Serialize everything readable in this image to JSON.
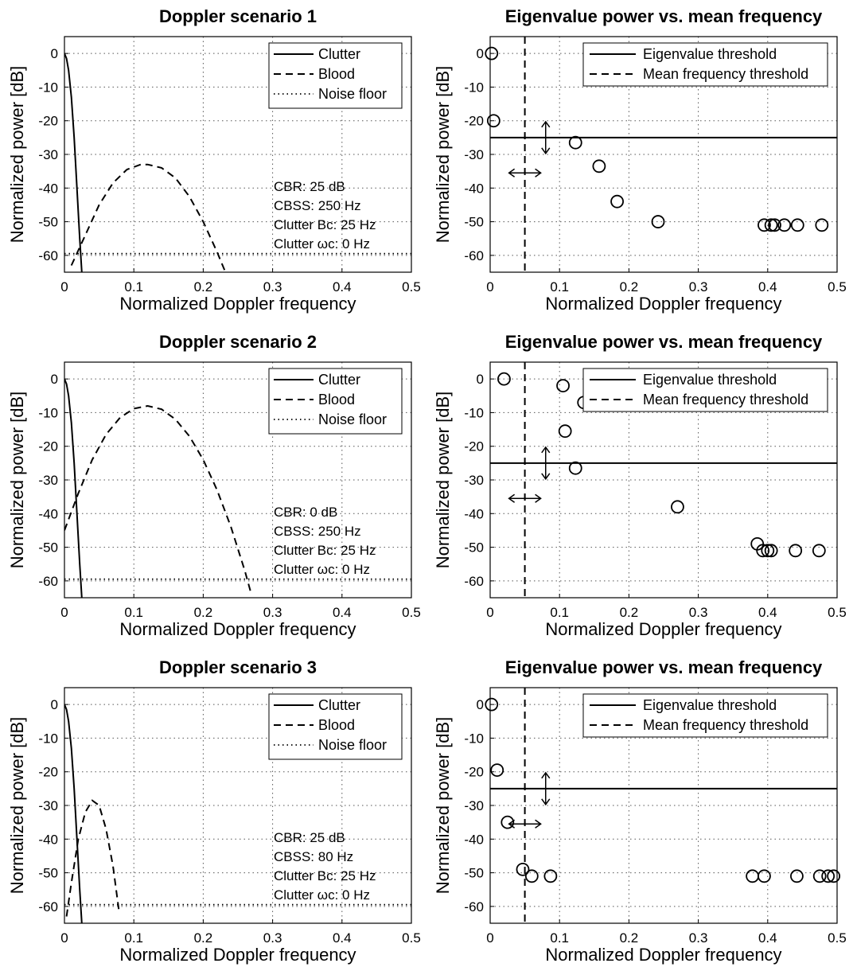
{
  "chart_data": [
    {
      "type": "line",
      "title": "Doppler scenario 1",
      "xlabel": "Normalized Doppler frequency",
      "ylabel": "Normalized power [dB]",
      "xlim": [
        0,
        0.5
      ],
      "ylim": [
        -65,
        5
      ],
      "xticks": [
        "0",
        "0.1",
        "0.2",
        "0.3",
        "0.4",
        "0.5"
      ],
      "yticks": [
        "0",
        "-10",
        "-20",
        "-30",
        "-40",
        "-50",
        "-60"
      ],
      "grid": true,
      "legend": {
        "position": "top-right",
        "entries": [
          "Clutter",
          "Blood",
          "Noise floor"
        ]
      },
      "annotations": [
        "CBR: 25 dB",
        "CBSS:  250 Hz",
        "Clutter Bc: 25 Hz",
        "Clutter ωc: 0 Hz"
      ],
      "series": [
        {
          "name": "Clutter",
          "style": "solid",
          "points": [
            [
              0,
              0
            ],
            [
              0.003,
              -1.5
            ],
            [
              0.006,
              -5
            ],
            [
              0.01,
              -13
            ],
            [
              0.014,
              -25
            ],
            [
              0.018,
              -40
            ],
            [
              0.022,
              -55
            ],
            [
              0.025,
              -65
            ]
          ]
        },
        {
          "name": "Blood",
          "style": "dashed",
          "points": [
            [
              0.01,
              -63
            ],
            [
              0.03,
              -54
            ],
            [
              0.05,
              -45
            ],
            [
              0.07,
              -38.5
            ],
            [
              0.09,
              -34.5
            ],
            [
              0.11,
              -33
            ],
            [
              0.12,
              -33
            ],
            [
              0.14,
              -34
            ],
            [
              0.16,
              -37
            ],
            [
              0.18,
              -42.5
            ],
            [
              0.2,
              -50
            ],
            [
              0.22,
              -59
            ],
            [
              0.232,
              -65
            ]
          ]
        },
        {
          "name": "Noise floor",
          "style": "dotted",
          "points": [
            [
              0,
              -59.5
            ],
            [
              0.5,
              -59.5
            ]
          ]
        }
      ]
    },
    {
      "type": "scatter",
      "title": "Eigenvalue power vs. mean frequency",
      "xlabel": "Normalized Doppler frequency",
      "ylabel": "Normalized power [dB]",
      "xlim": [
        0,
        0.5
      ],
      "ylim": [
        -65,
        5
      ],
      "xticks": [
        "0",
        "0.1",
        "0.2",
        "0.3",
        "0.4",
        "0.5"
      ],
      "yticks": [
        "0",
        "-10",
        "-20",
        "-30",
        "-40",
        "-50",
        "-60"
      ],
      "grid": true,
      "legend": {
        "position": "top-right",
        "entries": [
          "Eigenvalue threshold",
          "Mean frequency threshold"
        ]
      },
      "eigenvalue_threshold": -25,
      "mean_frequency_threshold": 0.05,
      "series": [
        {
          "values": [
            [
              0.002,
              0
            ],
            [
              0.005,
              -20
            ],
            [
              0.123,
              -26.5
            ],
            [
              0.157,
              -33.5
            ],
            [
              0.183,
              -44
            ],
            [
              0.242,
              -50
            ],
            [
              0.395,
              -51
            ],
            [
              0.405,
              -51
            ],
            [
              0.41,
              -51
            ],
            [
              0.424,
              -51
            ],
            [
              0.443,
              -51
            ],
            [
              0.478,
              -51
            ]
          ]
        }
      ]
    },
    {
      "type": "line",
      "title": "Doppler scenario 2",
      "xlabel": "Normalized Doppler frequency",
      "ylabel": "Normalized power [dB]",
      "xlim": [
        0,
        0.5
      ],
      "ylim": [
        -65,
        5
      ],
      "xticks": [
        "0",
        "0.1",
        "0.2",
        "0.3",
        "0.4",
        "0.5"
      ],
      "yticks": [
        "0",
        "-10",
        "-20",
        "-30",
        "-40",
        "-50",
        "-60"
      ],
      "grid": true,
      "legend": {
        "position": "top-right",
        "entries": [
          "Clutter",
          "Blood",
          "Noise floor"
        ]
      },
      "annotations": [
        "CBR: 0 dB",
        "CBSS:  250 Hz",
        "Clutter Bc: 25 Hz",
        "Clutter ωc: 0 Hz"
      ],
      "series": [
        {
          "name": "Clutter",
          "style": "solid",
          "points": [
            [
              0,
              0
            ],
            [
              0.003,
              -1.5
            ],
            [
              0.006,
              -5
            ],
            [
              0.01,
              -13
            ],
            [
              0.014,
              -25
            ],
            [
              0.018,
              -40
            ],
            [
              0.022,
              -55
            ],
            [
              0.025,
              -65
            ]
          ]
        },
        {
          "name": "Blood",
          "style": "dashed",
          "points": [
            [
              0,
              -45
            ],
            [
              0.02,
              -34
            ],
            [
              0.04,
              -24
            ],
            [
              0.06,
              -16.5
            ],
            [
              0.08,
              -11.5
            ],
            [
              0.1,
              -8.8
            ],
            [
              0.12,
              -8
            ],
            [
              0.14,
              -9
            ],
            [
              0.16,
              -12
            ],
            [
              0.18,
              -17
            ],
            [
              0.2,
              -24
            ],
            [
              0.22,
              -33
            ],
            [
              0.24,
              -44
            ],
            [
              0.26,
              -57
            ],
            [
              0.268,
              -63
            ]
          ]
        },
        {
          "name": "Noise floor",
          "style": "dotted",
          "points": [
            [
              0,
              -59.5
            ],
            [
              0.5,
              -59.5
            ]
          ]
        }
      ]
    },
    {
      "type": "scatter",
      "title": "Eigenvalue power vs. mean frequency",
      "xlabel": "Normalized Doppler frequency",
      "ylabel": "Normalized power [dB]",
      "xlim": [
        0,
        0.5
      ],
      "ylim": [
        -65,
        5
      ],
      "xticks": [
        "0",
        "0.1",
        "0.2",
        "0.3",
        "0.4",
        "0.5"
      ],
      "yticks": [
        "0",
        "-10",
        "-20",
        "-30",
        "-40",
        "-50",
        "-60"
      ],
      "grid": true,
      "legend": {
        "position": "top-right",
        "entries": [
          "Eigenvalue threshold",
          "Mean frequency threshold"
        ]
      },
      "eigenvalue_threshold": -25,
      "mean_frequency_threshold": 0.05,
      "series": [
        {
          "values": [
            [
              0.02,
              0
            ],
            [
              0.105,
              -2
            ],
            [
              0.135,
              -7
            ],
            [
              0.108,
              -15.5
            ],
            [
              0.123,
              -26.5
            ],
            [
              0.27,
              -38
            ],
            [
              0.385,
              -49
            ],
            [
              0.393,
              -51
            ],
            [
              0.4,
              -51
            ],
            [
              0.405,
              -51
            ],
            [
              0.44,
              -51
            ],
            [
              0.474,
              -51
            ]
          ]
        }
      ]
    },
    {
      "type": "line",
      "title": "Doppler scenario 3",
      "xlabel": "Normalized Doppler frequency",
      "ylabel": "Normalized power [dB]",
      "xlim": [
        0,
        0.5
      ],
      "ylim": [
        -65,
        5
      ],
      "xticks": [
        "0",
        "0.1",
        "0.2",
        "0.3",
        "0.4",
        "0.5"
      ],
      "yticks": [
        "0",
        "-10",
        "-20",
        "-30",
        "-40",
        "-50",
        "-60"
      ],
      "grid": true,
      "legend": {
        "position": "top-right",
        "entries": [
          "Clutter",
          "Blood",
          "Noise floor"
        ]
      },
      "annotations": [
        "CBR: 25 dB",
        "CBSS: 80 Hz",
        "Clutter Bc: 25 Hz",
        "Clutter ωc: 0 Hz"
      ],
      "series": [
        {
          "name": "Clutter",
          "style": "solid",
          "points": [
            [
              0,
              0
            ],
            [
              0.003,
              -1.5
            ],
            [
              0.006,
              -5
            ],
            [
              0.01,
              -13
            ],
            [
              0.014,
              -25
            ],
            [
              0.018,
              -40
            ],
            [
              0.022,
              -55
            ],
            [
              0.025,
              -65
            ]
          ]
        },
        {
          "name": "Blood",
          "style": "dashed",
          "points": [
            [
              0.003,
              -63
            ],
            [
              0.01,
              -53
            ],
            [
              0.02,
              -40
            ],
            [
              0.03,
              -32
            ],
            [
              0.04,
              -28.5
            ],
            [
              0.05,
              -30
            ],
            [
              0.06,
              -37
            ],
            [
              0.07,
              -48
            ],
            [
              0.079,
              -62
            ]
          ]
        },
        {
          "name": "Noise floor",
          "style": "dotted",
          "points": [
            [
              0,
              -59.5
            ],
            [
              0.5,
              -59.5
            ]
          ]
        }
      ]
    },
    {
      "type": "scatter",
      "title": "Eigenvalue power vs. mean frequency",
      "xlabel": "Normalized Doppler frequency",
      "ylabel": "Normalized power [dB]",
      "xlim": [
        0,
        0.5
      ],
      "ylim": [
        -65,
        5
      ],
      "xticks": [
        "0",
        "0.1",
        "0.2",
        "0.3",
        "0.4",
        "0.5"
      ],
      "yticks": [
        "0",
        "-10",
        "-20",
        "-30",
        "-40",
        "-50",
        "-60"
      ],
      "grid": true,
      "legend": {
        "position": "top-right",
        "entries": [
          "Eigenvalue threshold",
          "Mean frequency threshold"
        ]
      },
      "eigenvalue_threshold": -25,
      "mean_frequency_threshold": 0.05,
      "series": [
        {
          "values": [
            [
              0.002,
              0
            ],
            [
              0.01,
              -19.5
            ],
            [
              0.025,
              -35
            ],
            [
              0.047,
              -49
            ],
            [
              0.06,
              -51
            ],
            [
              0.087,
              -51
            ],
            [
              0.378,
              -51
            ],
            [
              0.395,
              -51
            ],
            [
              0.442,
              -51
            ],
            [
              0.475,
              -51
            ],
            [
              0.487,
              -51
            ],
            [
              0.495,
              -51
            ]
          ]
        }
      ]
    }
  ]
}
